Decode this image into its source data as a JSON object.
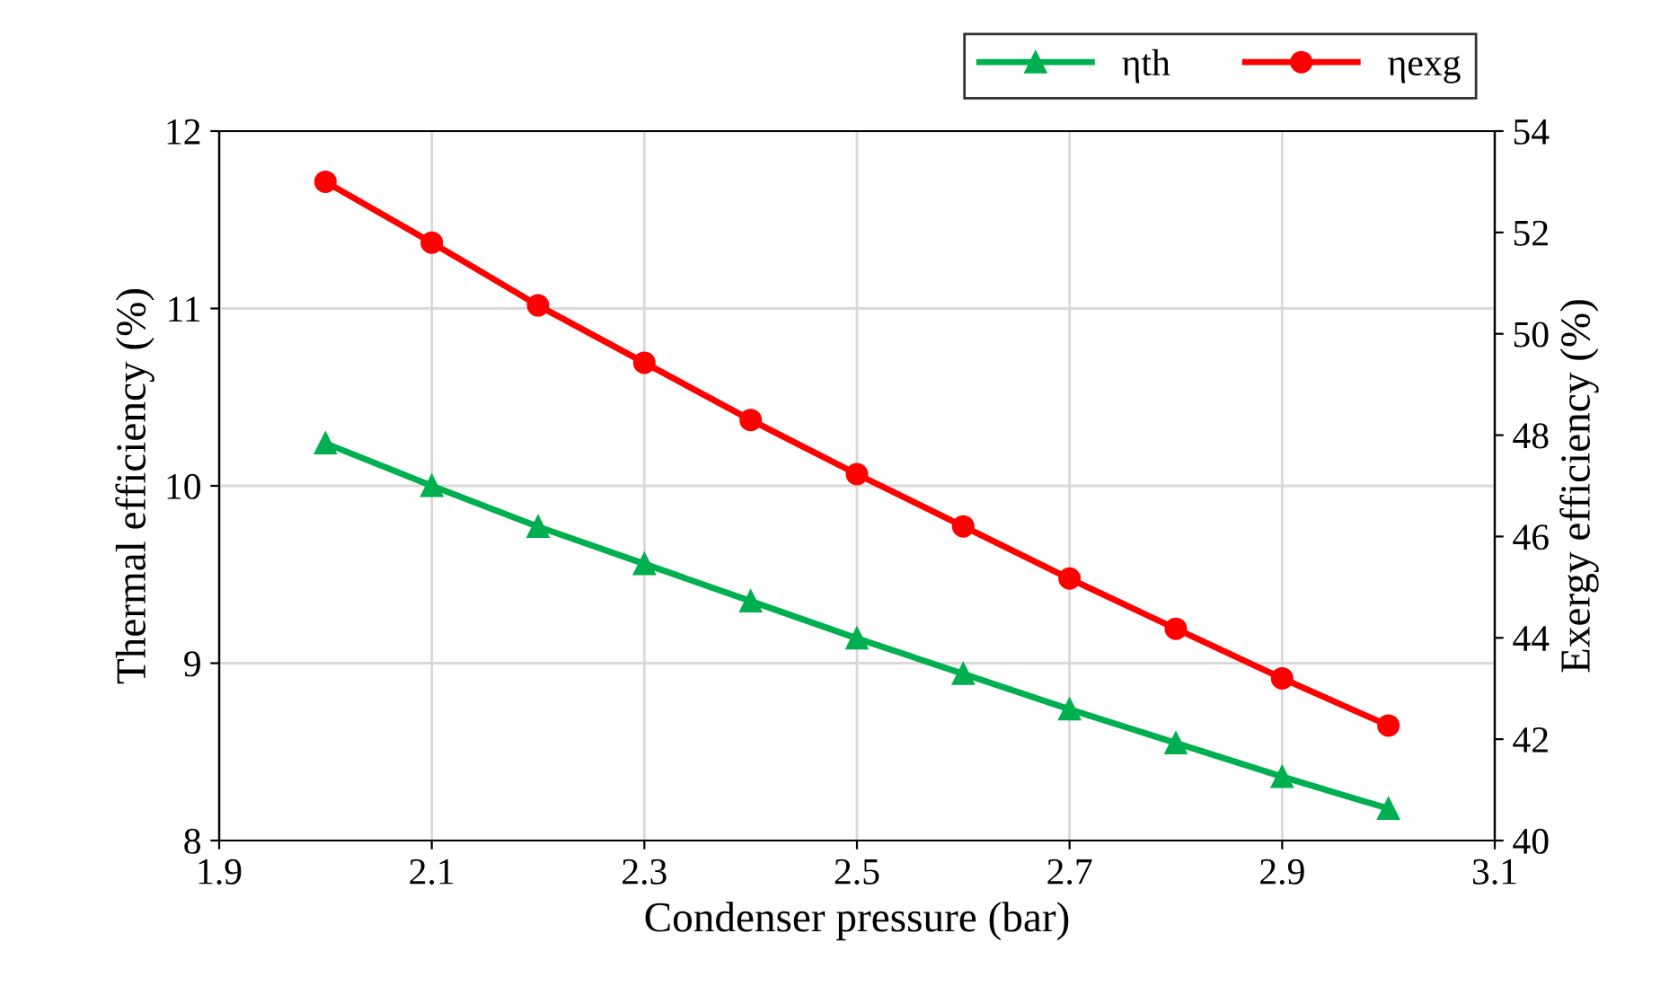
{
  "chart_data": {
    "type": "line",
    "xlabel": "Condenser pressure (bar)",
    "ylabel": "Thermal efficiency (%)",
    "y2label": "Exergy efficiency (%)",
    "x": [
      2.0,
      2.1,
      2.2,
      2.3,
      2.4,
      2.5,
      2.6,
      2.7,
      2.8,
      2.9,
      3.0
    ],
    "series": [
      {
        "name": "ηth",
        "color": "#00b050",
        "marker": "triangle",
        "values": [
          10.24,
          10.0,
          9.77,
          9.56,
          9.35,
          9.14,
          8.94,
          8.74,
          8.55,
          8.36,
          8.18
        ]
      },
      {
        "name": "ηexg",
        "color": "#ff0000",
        "marker": "circle",
        "axis": "y2",
        "values": [
          53.0,
          51.8,
          50.56,
          49.43,
          48.3,
          47.23,
          46.2,
          45.17,
          44.18,
          43.2,
          42.27
        ]
      }
    ],
    "xlim": [
      1.9,
      3.1
    ],
    "xticks": [
      1.9,
      2.1,
      2.3,
      2.5,
      2.7,
      2.9,
      3.1
    ],
    "ylim": [
      8,
      12
    ],
    "yticks": [
      8,
      9,
      10,
      11,
      12
    ],
    "y2lim": [
      40,
      54
    ],
    "y2ticks": [
      40,
      42,
      44,
      46,
      48,
      50,
      52,
      54
    ],
    "grid": true,
    "legend": "top right",
    "line_style": "solid"
  }
}
